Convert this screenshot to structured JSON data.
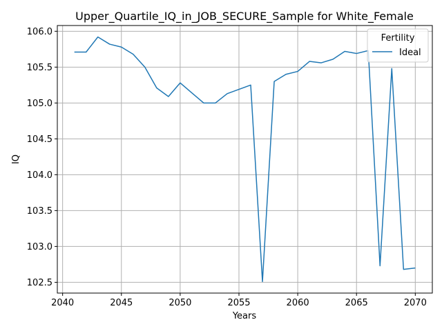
{
  "chart_data": {
    "type": "line",
    "title": "Upper_Quartile_IQ_in_JOB_SECURE_Sample for White_Female",
    "xlabel": "Years",
    "ylabel": "IQ",
    "xlim": [
      2039.55,
      2071.45
    ],
    "ylim": [
      102.35,
      106.08
    ],
    "xticks": [
      2040,
      2045,
      2050,
      2055,
      2060,
      2065,
      2070
    ],
    "yticks": [
      102.5,
      103.0,
      103.5,
      104.0,
      104.5,
      105.0,
      105.5,
      106.0
    ],
    "xtick_labels": [
      "2040",
      "2045",
      "2050",
      "2055",
      "2060",
      "2065",
      "2070"
    ],
    "ytick_labels": [
      "102.5",
      "103.0",
      "103.5",
      "104.0",
      "104.5",
      "105.0",
      "105.5",
      "106.0"
    ],
    "grid": true,
    "legend": {
      "title": "Fertility",
      "position": "upper right"
    },
    "colors": {
      "Ideal": "#1f77b4"
    },
    "series": [
      {
        "name": "Ideal",
        "x": [
          2041,
          2042,
          2043,
          2044,
          2045,
          2046,
          2047,
          2048,
          2049,
          2050,
          2051,
          2052,
          2053,
          2054,
          2055,
          2056,
          2057,
          2058,
          2059,
          2060,
          2061,
          2062,
          2063,
          2064,
          2065,
          2066,
          2067,
          2068,
          2069,
          2070
        ],
        "y": [
          105.71,
          105.71,
          105.92,
          105.82,
          105.78,
          105.68,
          105.5,
          105.21,
          105.09,
          105.28,
          105.14,
          105.0,
          105.0,
          105.13,
          105.19,
          105.25,
          102.51,
          105.3,
          105.4,
          105.44,
          105.58,
          105.56,
          105.61,
          105.72,
          105.69,
          105.73,
          102.73,
          105.48,
          102.68,
          102.7
        ]
      }
    ]
  }
}
